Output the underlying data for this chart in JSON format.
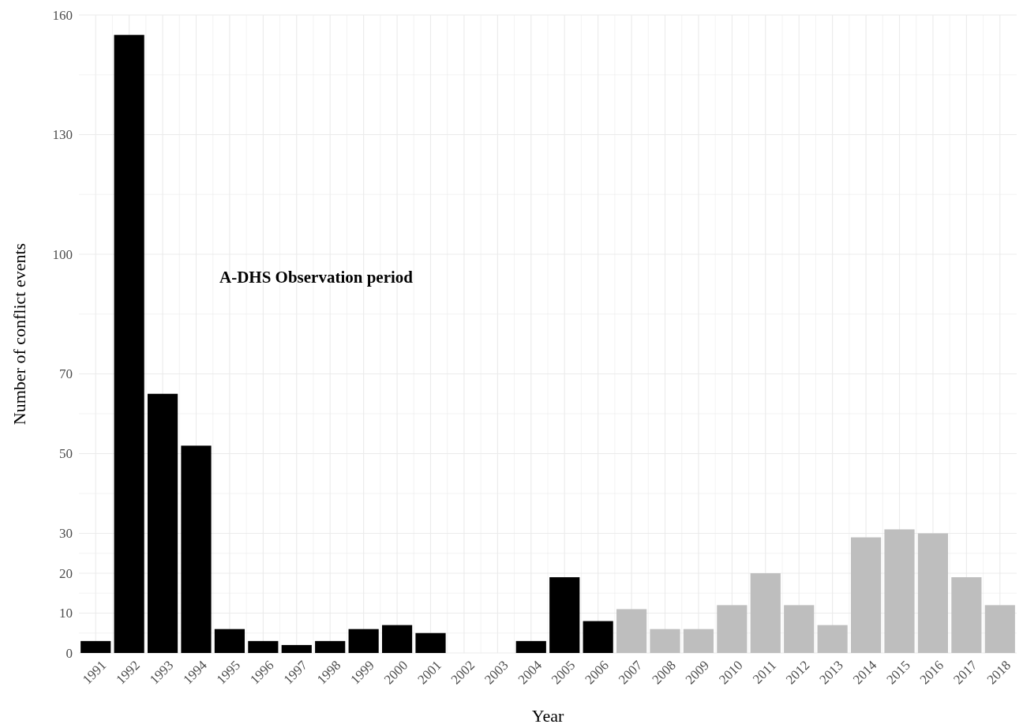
{
  "chart_data": {
    "type": "bar",
    "categories": [
      "1991",
      "1992",
      "1993",
      "1994",
      "1995",
      "1996",
      "1997",
      "1998",
      "1999",
      "2000",
      "2001",
      "2002",
      "2003",
      "2004",
      "2005",
      "2006",
      "2007",
      "2008",
      "2009",
      "2010",
      "2011",
      "2012",
      "2013",
      "2014",
      "2015",
      "2016",
      "2017",
      "2018"
    ],
    "values": [
      3,
      155,
      65,
      52,
      6,
      3,
      2,
      3,
      6,
      7,
      5,
      0,
      0,
      3,
      19,
      8,
      11,
      6,
      6,
      12,
      20,
      12,
      7,
      29,
      31,
      30,
      19,
      12
    ],
    "colors": [
      "#000000",
      "#000000",
      "#000000",
      "#000000",
      "#000000",
      "#000000",
      "#000000",
      "#000000",
      "#000000",
      "#000000",
      "#000000",
      "#000000",
      "#000000",
      "#000000",
      "#000000",
      "#000000",
      "#bebebe",
      "#bebebe",
      "#bebebe",
      "#bebebe",
      "#bebebe",
      "#bebebe",
      "#bebebe",
      "#bebebe",
      "#bebebe",
      "#bebebe",
      "#bebebe",
      "#bebebe"
    ],
    "xlabel": "Year",
    "ylabel": "Number of conflict events",
    "ylim": [
      0,
      160
    ],
    "yticks": [
      0,
      {
        "value": 5,
        "label": null
      },
      10,
      {
        "value": 15,
        "label": null
      },
      20,
      {
        "value": 25,
        "label": null
      },
      30,
      {
        "value": 40,
        "label": null
      },
      50,
      {
        "value": 60,
        "label": null
      },
      70,
      {
        "value": 85,
        "label": null
      },
      100,
      {
        "value": 115,
        "label": null
      },
      130,
      {
        "value": 145,
        "label": null
      },
      160
    ],
    "grid": true,
    "annotations": [
      "A-DHS Observation period"
    ]
  }
}
